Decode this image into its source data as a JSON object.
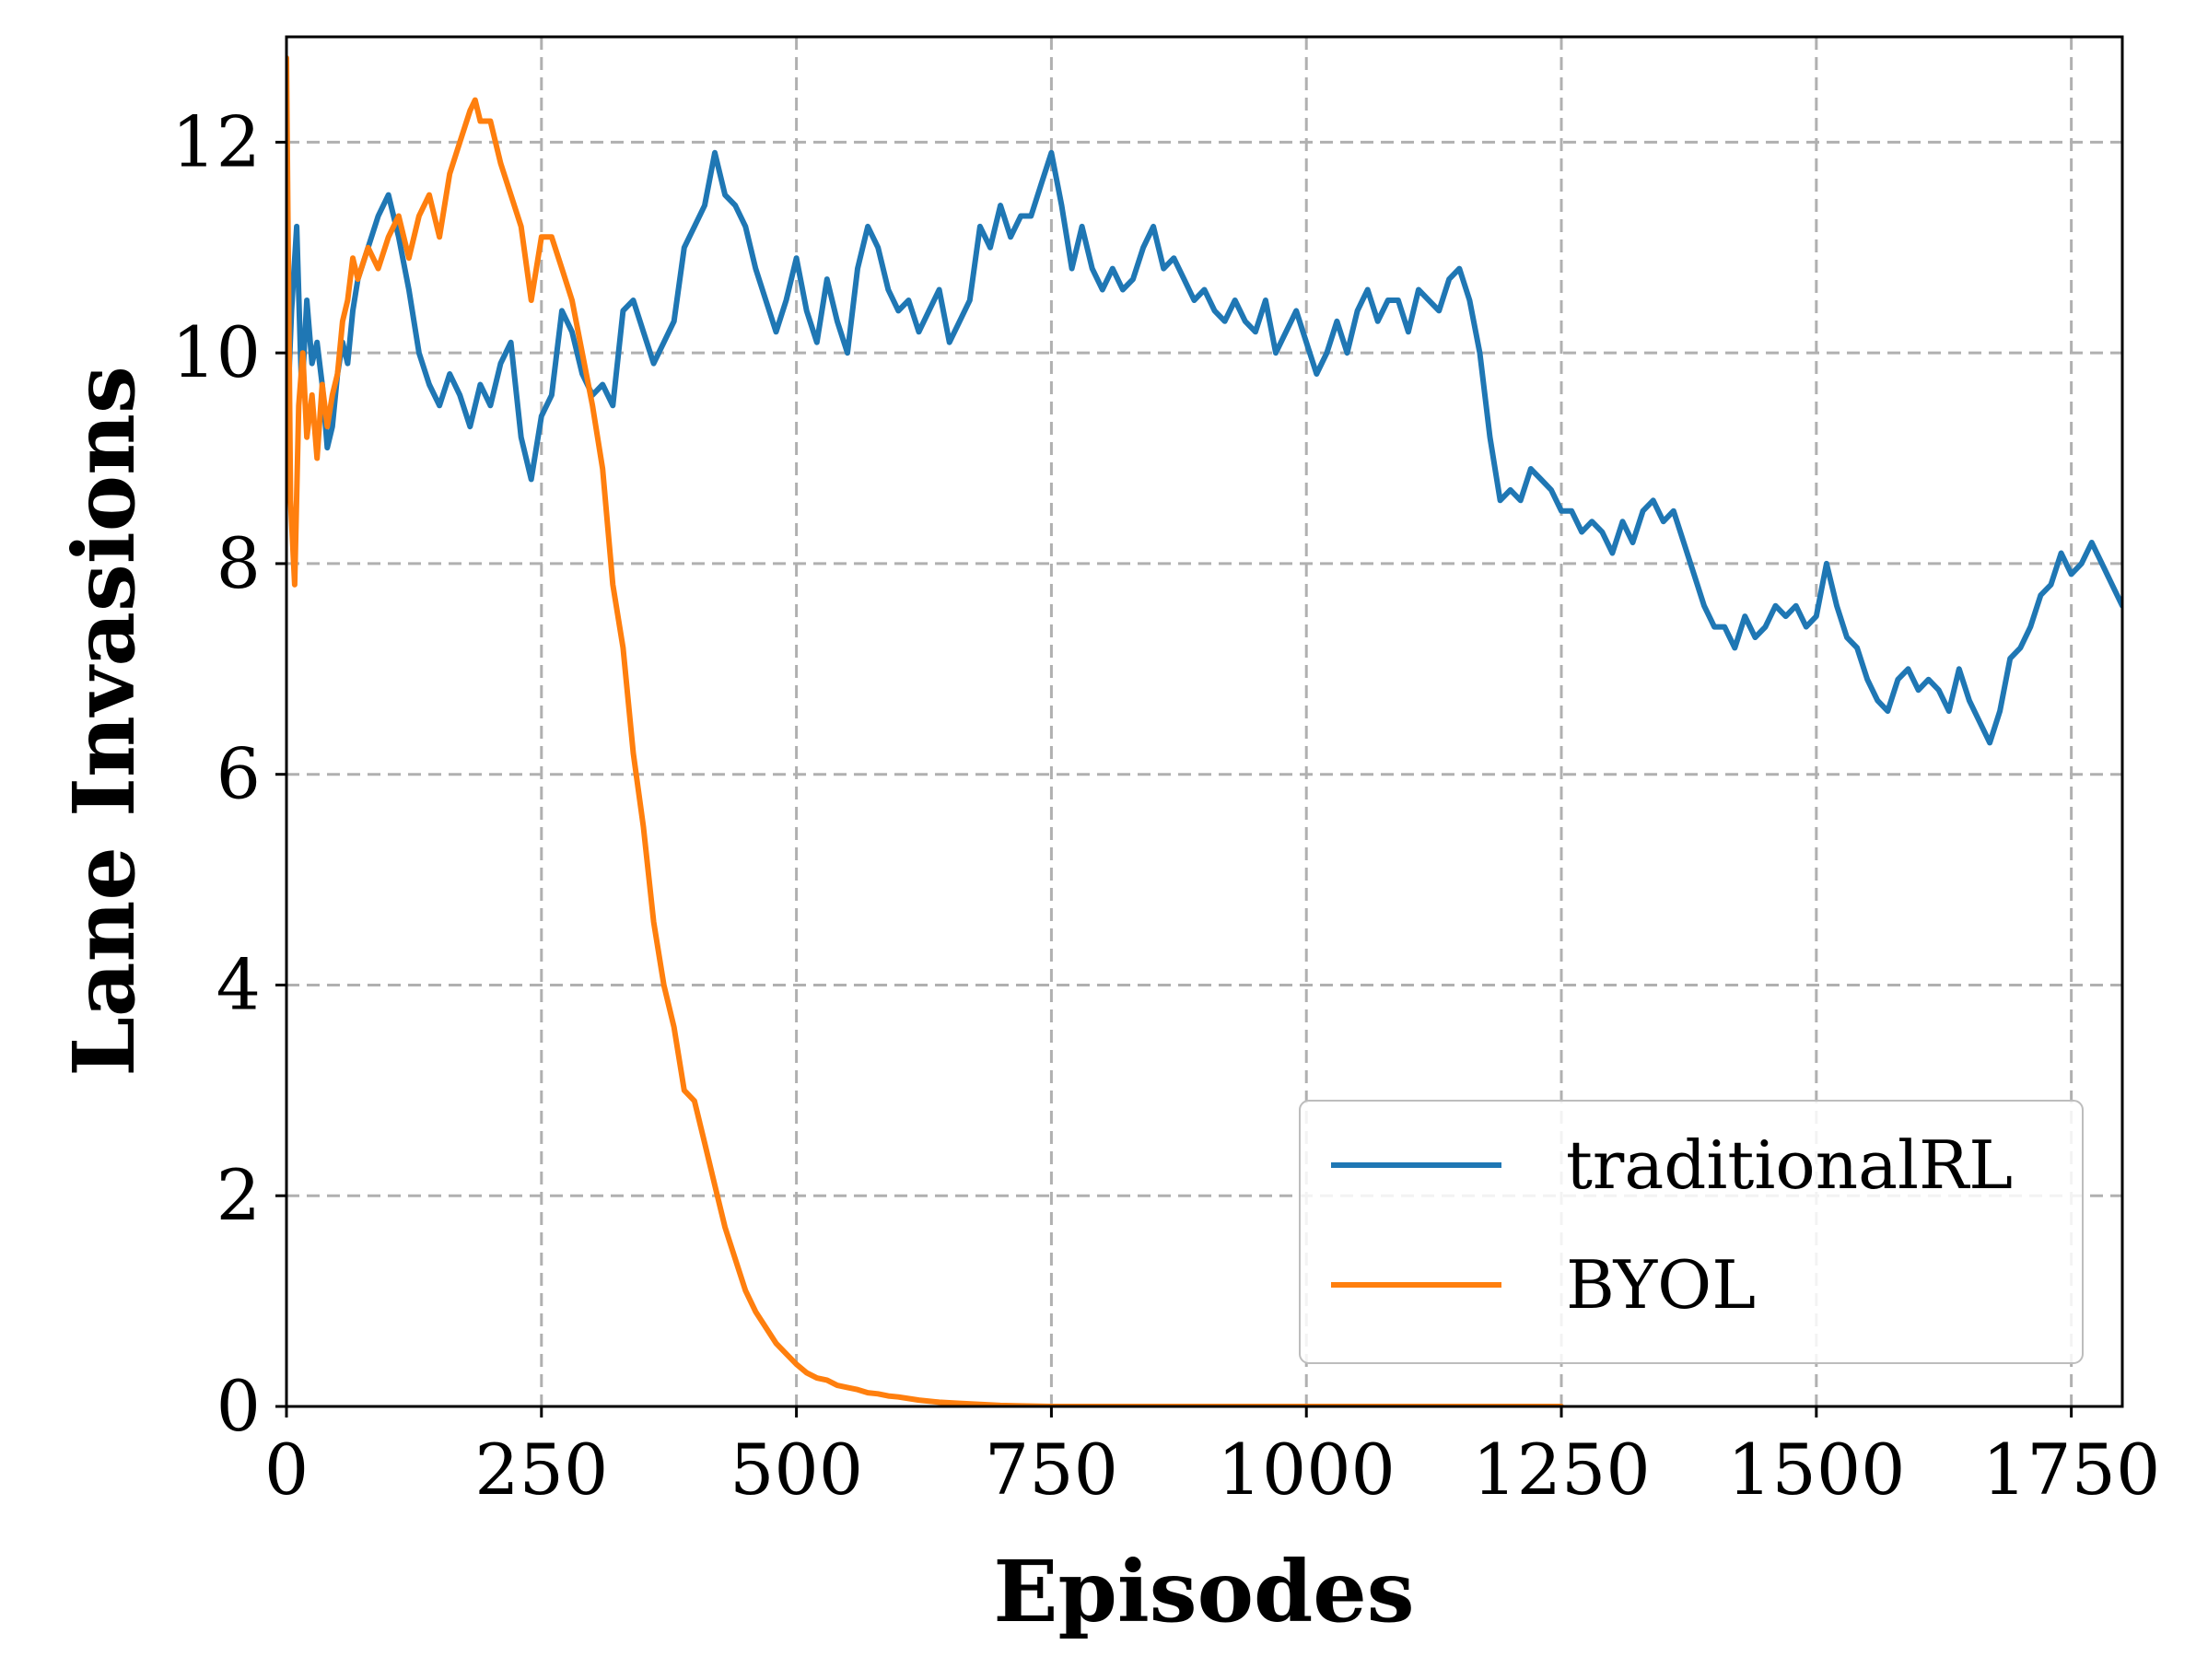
{
  "chart_data": {
    "type": "line",
    "xlabel": "Episodes",
    "ylabel": "Lane Invasions",
    "xlim": [
      0,
      1800
    ],
    "ylim": [
      0,
      13
    ],
    "xticks": [
      0,
      250,
      500,
      750,
      1000,
      1250,
      1500,
      1750
    ],
    "yticks": [
      0,
      2,
      4,
      6,
      8,
      10,
      12
    ],
    "grid": true,
    "legend_position": "bottom-right",
    "series": [
      {
        "name": "traditionalRL",
        "color": "#1f77b4",
        "x": [
          0,
          5,
          10,
          15,
          20,
          25,
          30,
          35,
          40,
          45,
          50,
          55,
          60,
          65,
          70,
          80,
          90,
          100,
          110,
          120,
          130,
          140,
          150,
          160,
          170,
          180,
          190,
          200,
          210,
          220,
          230,
          240,
          250,
          260,
          270,
          280,
          290,
          300,
          310,
          320,
          330,
          340,
          350,
          360,
          370,
          380,
          390,
          400,
          410,
          420,
          430,
          440,
          450,
          460,
          470,
          480,
          490,
          500,
          510,
          520,
          530,
          540,
          550,
          560,
          570,
          580,
          590,
          600,
          610,
          620,
          630,
          640,
          650,
          660,
          670,
          680,
          690,
          700,
          710,
          720,
          730,
          740,
          750,
          760,
          770,
          780,
          790,
          800,
          810,
          820,
          830,
          840,
          850,
          860,
          870,
          880,
          890,
          900,
          910,
          920,
          930,
          940,
          950,
          960,
          970,
          980,
          990,
          1000,
          1010,
          1020,
          1030,
          1040,
          1050,
          1060,
          1070,
          1080,
          1090,
          1100,
          1110,
          1120,
          1130,
          1140,
          1150,
          1160,
          1170,
          1180,
          1190,
          1200,
          1210,
          1220,
          1230,
          1240,
          1250,
          1260,
          1270,
          1280,
          1290,
          1300,
          1310,
          1320,
          1330,
          1340,
          1350,
          1360,
          1370,
          1380,
          1390,
          1400,
          1410,
          1420,
          1430,
          1440,
          1450,
          1460,
          1470,
          1480,
          1490,
          1500,
          1510,
          1520,
          1530,
          1540,
          1550,
          1560,
          1570,
          1580,
          1590,
          1600,
          1610,
          1620,
          1630,
          1640,
          1650,
          1660,
          1670,
          1680,
          1690,
          1700,
          1710,
          1720,
          1730,
          1740,
          1750,
          1760,
          1770,
          1780,
          1790,
          1800
        ],
        "y": [
          9.2,
          10.4,
          11.2,
          9.6,
          10.5,
          9.9,
          10.1,
          9.7,
          9.1,
          9.3,
          9.8,
          10.1,
          9.9,
          10.4,
          10.7,
          11.0,
          11.3,
          11.5,
          11.1,
          10.6,
          10.0,
          9.7,
          9.5,
          9.8,
          9.6,
          9.3,
          9.7,
          9.5,
          9.9,
          10.1,
          9.2,
          8.8,
          9.4,
          9.6,
          10.4,
          10.2,
          9.8,
          9.6,
          9.7,
          9.5,
          10.4,
          10.5,
          10.2,
          9.9,
          10.1,
          10.3,
          11.0,
          11.2,
          11.4,
          11.9,
          11.5,
          11.4,
          11.2,
          10.8,
          10.5,
          10.2,
          10.5,
          10.9,
          10.4,
          10.1,
          10.7,
          10.3,
          10.0,
          10.8,
          11.2,
          11.0,
          10.6,
          10.4,
          10.5,
          10.2,
          10.4,
          10.6,
          10.1,
          10.3,
          10.5,
          11.2,
          11.0,
          11.4,
          11.1,
          11.3,
          11.3,
          11.6,
          11.9,
          11.4,
          10.8,
          11.2,
          10.8,
          10.6,
          10.8,
          10.6,
          10.7,
          11.0,
          11.2,
          10.8,
          10.9,
          10.7,
          10.5,
          10.6,
          10.4,
          10.3,
          10.5,
          10.3,
          10.2,
          10.5,
          10.0,
          10.2,
          10.4,
          10.1,
          9.8,
          10.0,
          10.3,
          10.0,
          10.4,
          10.6,
          10.3,
          10.5,
          10.5,
          10.2,
          10.6,
          10.5,
          10.4,
          10.7,
          10.8,
          10.5,
          10.0,
          9.2,
          8.6,
          8.7,
          8.6,
          8.9,
          8.8,
          8.7,
          8.5,
          8.5,
          8.3,
          8.4,
          8.3,
          8.1,
          8.4,
          8.2,
          8.5,
          8.6,
          8.4,
          8.5,
          8.2,
          7.9,
          7.6,
          7.4,
          7.4,
          7.2,
          7.5,
          7.3,
          7.4,
          7.6,
          7.5,
          7.6,
          7.4,
          7.5,
          8.0,
          7.6,
          7.3,
          7.2,
          6.9,
          6.7,
          6.6,
          6.9,
          7.0,
          6.8,
          6.9,
          6.8,
          6.6,
          7.0,
          6.7,
          6.5,
          6.3,
          6.6,
          7.1,
          7.2,
          7.4,
          7.7,
          7.8,
          8.1,
          7.9,
          8.0,
          8.2,
          8.0,
          7.8,
          7.6
        ]
      },
      {
        "name": "BYOL",
        "color": "#ff7f0e",
        "x": [
          0,
          4,
          8,
          12,
          16,
          20,
          25,
          30,
          35,
          40,
          45,
          50,
          55,
          60,
          65,
          70,
          80,
          90,
          100,
          110,
          120,
          130,
          140,
          150,
          160,
          170,
          180,
          185,
          190,
          200,
          210,
          220,
          230,
          240,
          250,
          260,
          270,
          280,
          290,
          300,
          310,
          320,
          330,
          340,
          350,
          360,
          370,
          380,
          390,
          400,
          410,
          420,
          430,
          440,
          450,
          460,
          470,
          480,
          490,
          500,
          510,
          520,
          530,
          540,
          550,
          560,
          570,
          580,
          590,
          600,
          620,
          640,
          660,
          680,
          700,
          720,
          750,
          800,
          900,
          1000,
          1100,
          1250
        ],
        "y": [
          12.8,
          8.6,
          7.8,
          9.5,
          10.0,
          9.2,
          9.6,
          9.0,
          9.7,
          9.3,
          9.6,
          9.8,
          10.3,
          10.5,
          10.9,
          10.7,
          11.0,
          10.8,
          11.1,
          11.3,
          10.9,
          11.3,
          11.5,
          11.1,
          11.7,
          12.0,
          12.3,
          12.4,
          12.2,
          12.2,
          11.8,
          11.5,
          11.2,
          10.5,
          11.1,
          11.1,
          10.8,
          10.5,
          10.0,
          9.5,
          8.9,
          7.8,
          7.2,
          6.2,
          5.5,
          4.6,
          4.0,
          3.6,
          3.0,
          2.9,
          2.5,
          2.1,
          1.7,
          1.4,
          1.1,
          0.9,
          0.75,
          0.6,
          0.5,
          0.4,
          0.32,
          0.27,
          0.25,
          0.2,
          0.18,
          0.16,
          0.13,
          0.12,
          0.1,
          0.09,
          0.06,
          0.04,
          0.03,
          0.02,
          0.01,
          0.005,
          0.0,
          0.0,
          0.0,
          0.0,
          0.0,
          0.0
        ]
      }
    ]
  }
}
